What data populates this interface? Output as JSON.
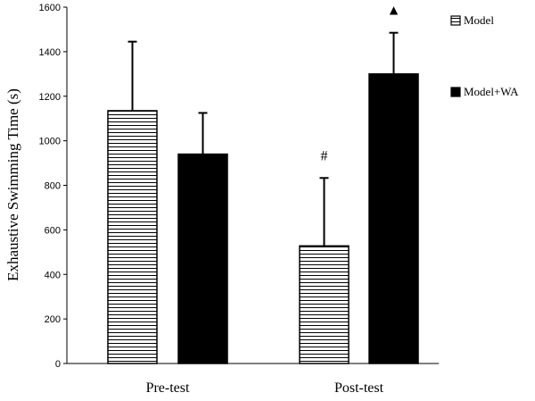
{
  "chart_data": {
    "type": "bar",
    "title": "",
    "xlabel": "",
    "ylabel": "Exhaustive Swimming Time (s)",
    "ylim": [
      0,
      1600
    ],
    "yticks": [
      0,
      200,
      400,
      600,
      800,
      1000,
      1200,
      1400,
      1600
    ],
    "categories": [
      "Pre-test",
      "Post-test"
    ],
    "grid": false,
    "legend_position": "top-right",
    "series": [
      {
        "name": "Model",
        "pattern": "horizontal-stripes",
        "color": "#000000",
        "values": [
          1135,
          528
        ],
        "errors": [
          310,
          305
        ],
        "markers": [
          "",
          "#"
        ]
      },
      {
        "name": "Model+WA",
        "pattern": "solid",
        "color": "#000000",
        "values": [
          940,
          1300
        ],
        "errors": [
          185,
          185
        ],
        "markers": [
          "",
          "▲"
        ]
      }
    ]
  }
}
